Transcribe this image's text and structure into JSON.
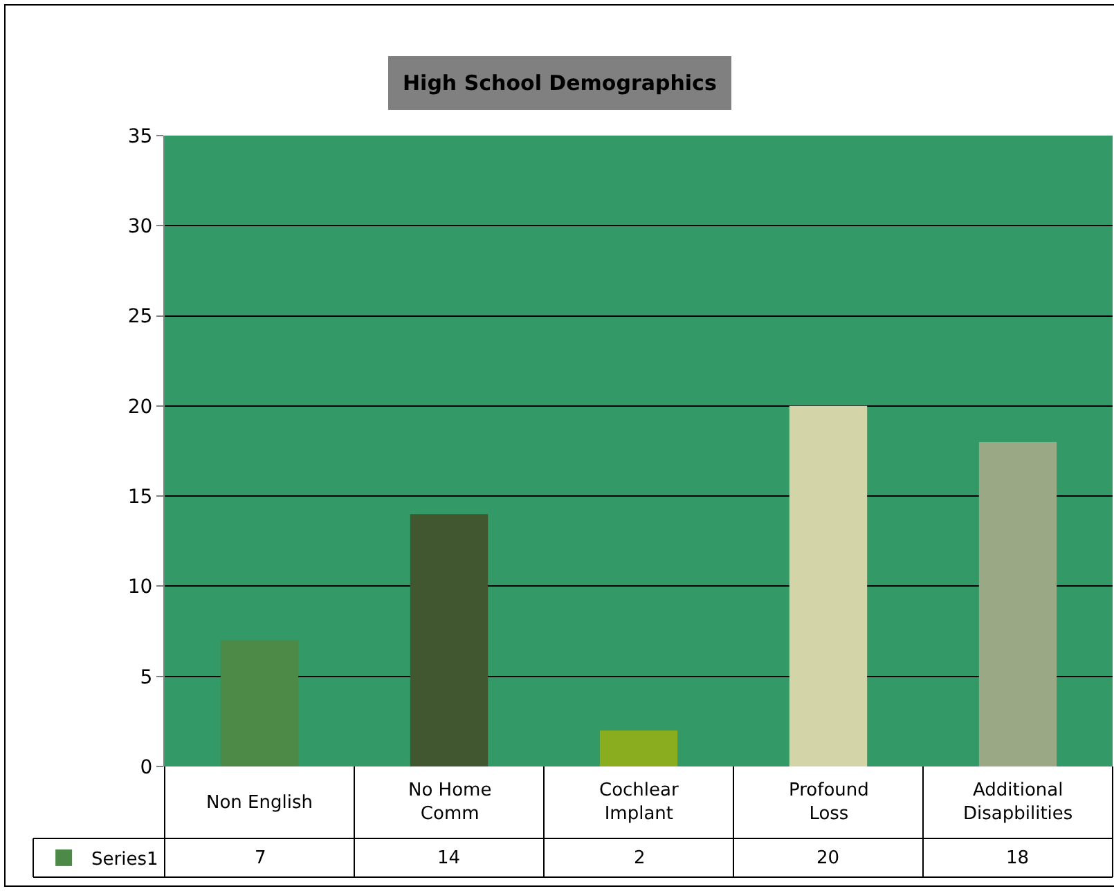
{
  "chart_data": {
    "type": "bar",
    "title": "High School Demographics",
    "categories": [
      "Non English",
      "No Home Comm",
      "Cochlear Implant",
      "Profound Loss",
      "Additional Disapbilities"
    ],
    "series": [
      {
        "name": "Series1",
        "color": "#4e8a47",
        "colors": [
          "#4e8a47",
          "#41572f",
          "#8aac1f",
          "#d3d5a9",
          "#9aa886"
        ],
        "values": [
          7,
          14,
          2,
          20,
          18
        ]
      }
    ],
    "ylim": [
      0,
      35
    ],
    "yticks": [
      0,
      5,
      10,
      15,
      20,
      25,
      30,
      35
    ],
    "grid": "y",
    "legend": "bottom left",
    "data_labels": true
  }
}
